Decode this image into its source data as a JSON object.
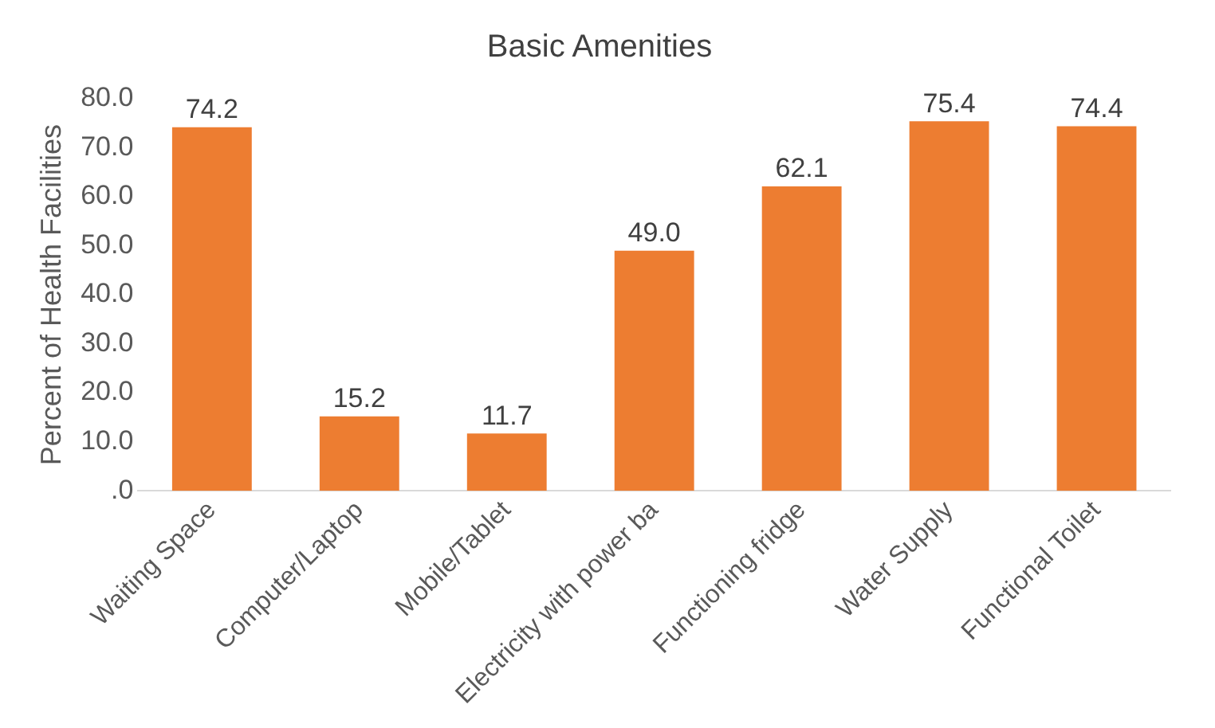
{
  "chart_data": {
    "type": "bar",
    "title": "Basic Amenities",
    "ylabel": "Percent of Health Facilities",
    "categories": [
      "Waiting Space",
      "Computer/Laptop",
      "Mobile/Tablet",
      "Electricity with power ba",
      "Functioning fridge",
      "Water Supply",
      "Functional Toilet"
    ],
    "values": [
      74.2,
      15.2,
      11.7,
      49.0,
      62.1,
      75.4,
      74.4
    ],
    "color": "#ed7d31",
    "ylim": [
      0,
      80
    ],
    "yticks": [
      {
        "value": 0,
        "label": ".0"
      },
      {
        "value": 10,
        "label": "10.0"
      },
      {
        "value": 20,
        "label": "20.0"
      },
      {
        "value": 30,
        "label": "30.0"
      },
      {
        "value": 40,
        "label": "40.0"
      },
      {
        "value": 50,
        "label": "50.0"
      },
      {
        "value": 60,
        "label": "60.0"
      },
      {
        "value": 70,
        "label": "70.0"
      },
      {
        "value": 80,
        "label": "80.0"
      }
    ],
    "value_labels": [
      "74.2",
      "15.2",
      "11.7",
      "49.0",
      "62.1",
      "75.4",
      "74.4"
    ],
    "grid": false,
    "legend": false
  }
}
